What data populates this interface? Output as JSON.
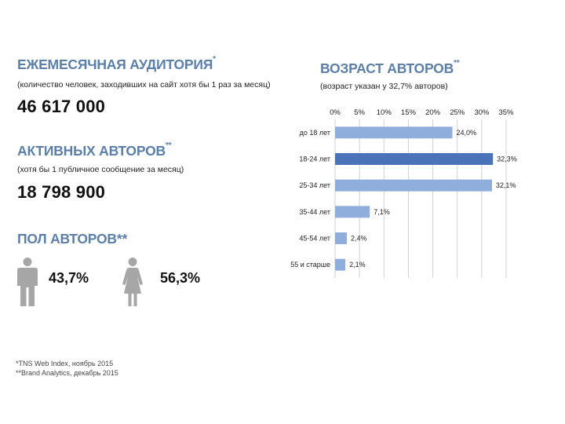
{
  "left": {
    "monthly": {
      "title": "ЕЖЕМЕСЯЧНАЯ АУДИТОРИЯ",
      "mark": "*",
      "subtitle": "(количество человек, заходивших на сайт хотя бы 1 раз за месяц)",
      "value": "46 617 000"
    },
    "active": {
      "title": "АКТИВНЫХ АВТОРОВ",
      "mark": "**",
      "subtitle": "(хотя бы 1 публичное сообщение за месяц)",
      "value": "18 798 900"
    },
    "gender": {
      "title": "ПОЛ АВТОРОВ**",
      "male_value": "43,7%",
      "female_value": "56,3%",
      "male_icon": "male-person-icon",
      "female_icon": "female-person-icon",
      "icon_color": "#a6a6a6"
    }
  },
  "right": {
    "title": "ВОЗРАСТ АВТОРОВ",
    "mark": "**",
    "subtitle": "(возраст указан у 32,7% авторов)"
  },
  "footnotes": [
    "*TNS Web Index, ноябрь 2015",
    "**Brand Analytics, декабрь 2015"
  ],
  "colors": {
    "heading": "#5b7fa8",
    "bar": "#8faedb",
    "bar_highlight": "#4a72b8",
    "grid": "#d0d0d0"
  },
  "chart_data": {
    "type": "bar",
    "orientation": "horizontal",
    "categories": [
      "до 18 лет",
      "18-24 лет",
      "25-34 лет",
      "35-44 лет",
      "45-54 лет",
      "55 и старше"
    ],
    "values": [
      24.0,
      32.3,
      32.1,
      7.1,
      2.4,
      2.1
    ],
    "value_labels": [
      "24,0%",
      "32,3%",
      "32,1%",
      "7,1%",
      "2,4%",
      "2,1%"
    ],
    "highlight_index": 1,
    "xlim": [
      0,
      35
    ],
    "ticks": [
      0,
      5,
      10,
      15,
      20,
      25,
      30,
      35
    ],
    "tick_labels": [
      "0%",
      "5%",
      "10%",
      "15%",
      "20%",
      "25%",
      "30%",
      "35%"
    ],
    "axis_position": "top",
    "grid": true
  }
}
